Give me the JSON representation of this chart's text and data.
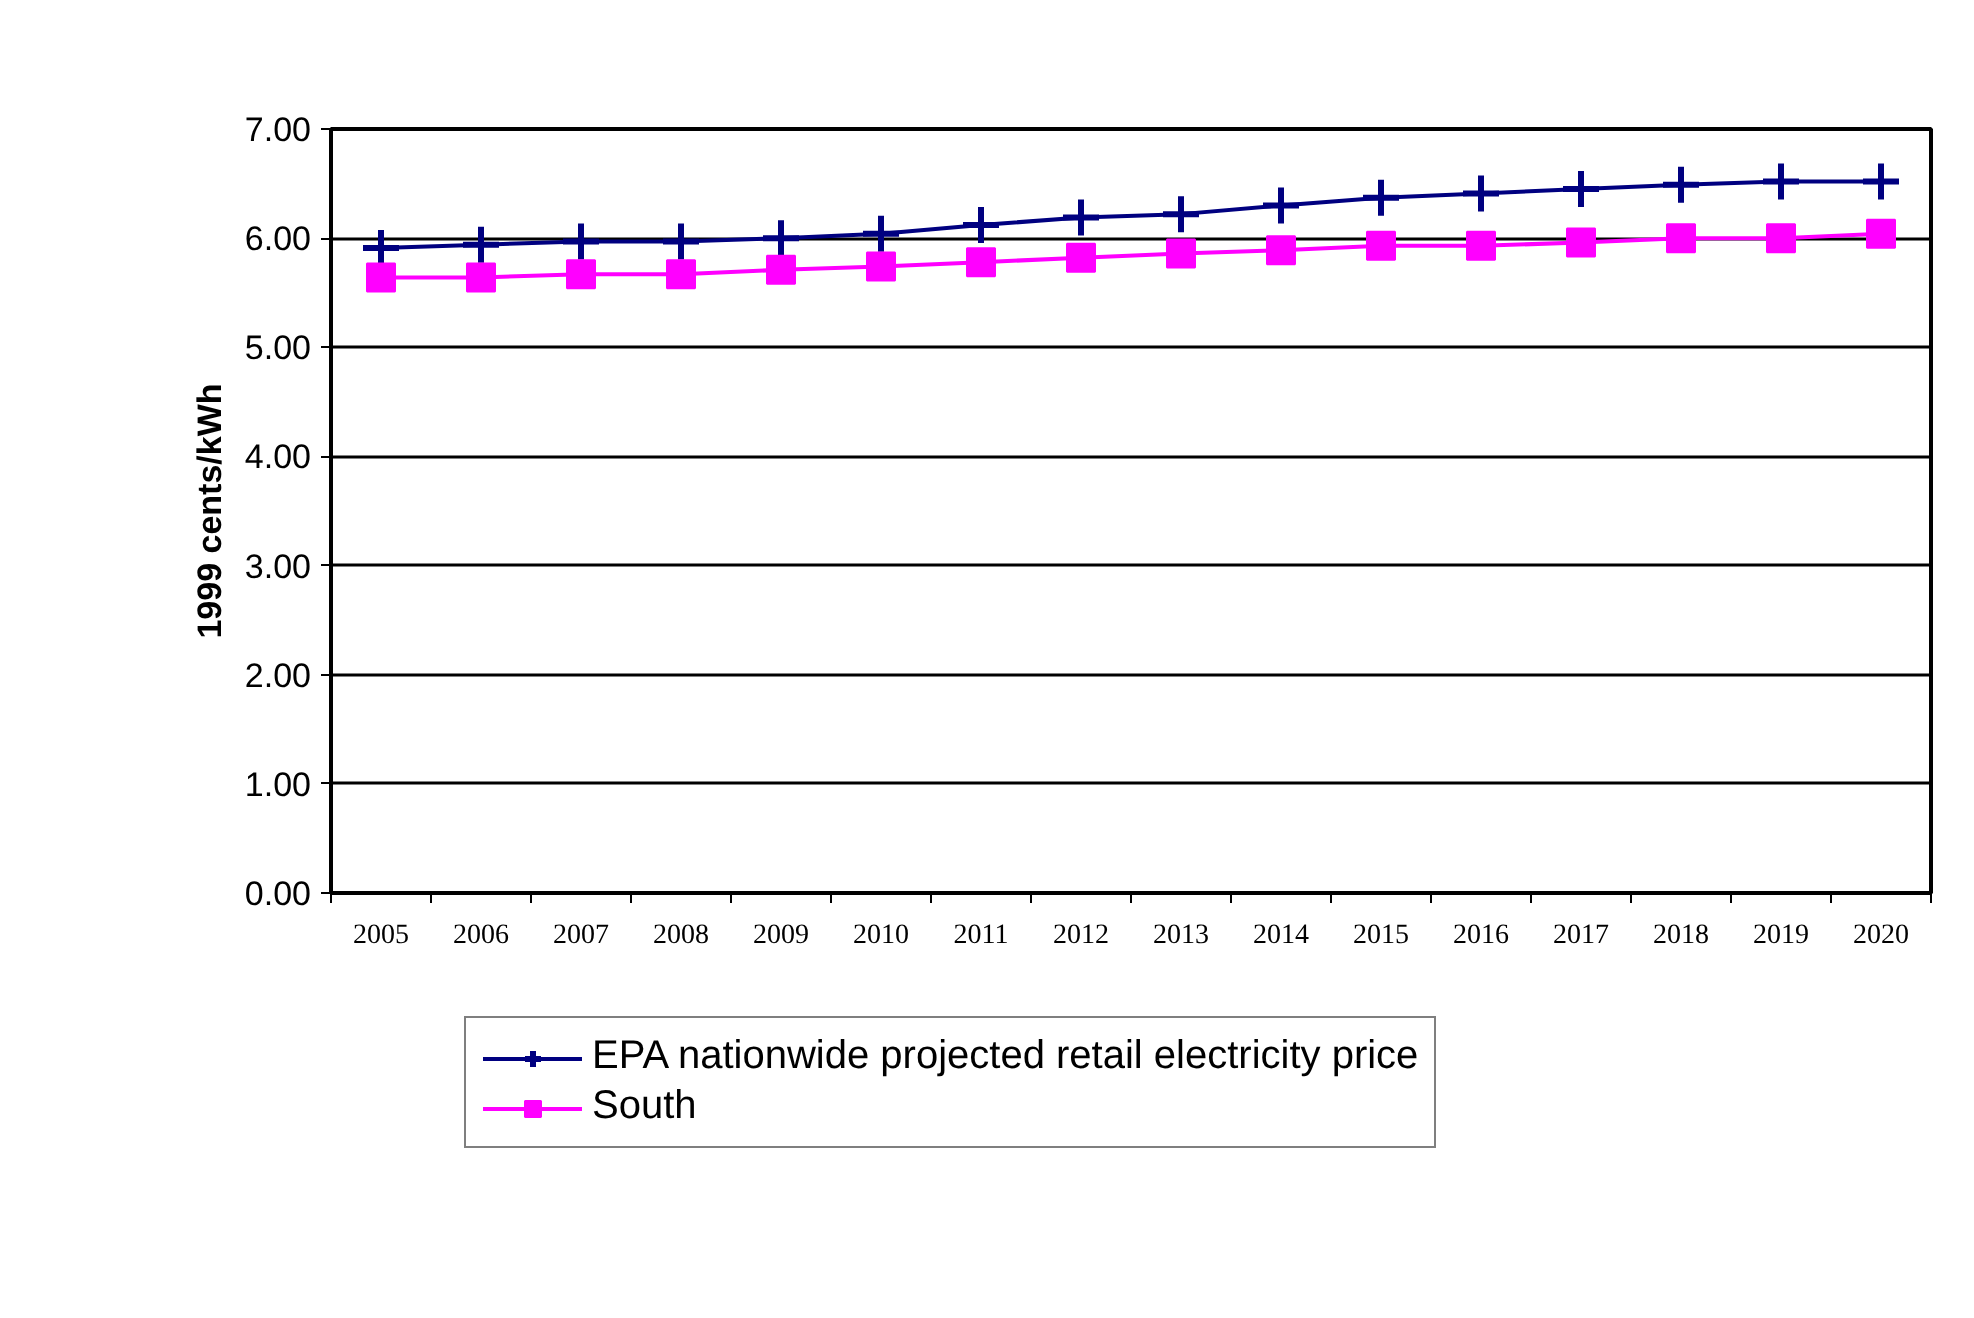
{
  "chart_data": {
    "type": "line",
    "ylabel": "1999 cents/kWh",
    "categories": [
      "2005",
      "2006",
      "2007",
      "2008",
      "2009",
      "2010",
      "2011",
      "2012",
      "2013",
      "2014",
      "2015",
      "2016",
      "2017",
      "2018",
      "2019",
      "2020"
    ],
    "series": [
      {
        "name": "EPA nationwide projected retail electricity price",
        "color": "#000080",
        "marker": "cross",
        "values": [
          5.91,
          5.94,
          5.97,
          5.97,
          6.0,
          6.04,
          6.12,
          6.19,
          6.22,
          6.3,
          6.37,
          6.41,
          6.45,
          6.49,
          6.52,
          6.52
        ]
      },
      {
        "name": "South",
        "color": "#ff00ff",
        "marker": "square",
        "values": [
          5.64,
          5.64,
          5.67,
          5.67,
          5.71,
          5.74,
          5.78,
          5.82,
          5.86,
          5.89,
          5.93,
          5.93,
          5.96,
          6.0,
          6.0,
          6.04
        ]
      }
    ],
    "ylim": [
      0,
      7
    ],
    "yticks": [
      {
        "value": 0,
        "label": "0.00"
      },
      {
        "value": 1,
        "label": "1.00"
      },
      {
        "value": 2,
        "label": "2.00"
      },
      {
        "value": 3,
        "label": "3.00"
      },
      {
        "value": 4,
        "label": "4.00"
      },
      {
        "value": 5,
        "label": "5.00"
      },
      {
        "value": 6,
        "label": "6.00"
      },
      {
        "value": 7,
        "label": "7.00"
      }
    ],
    "grid": "y",
    "legend": "bottom",
    "line_style": "solid"
  }
}
